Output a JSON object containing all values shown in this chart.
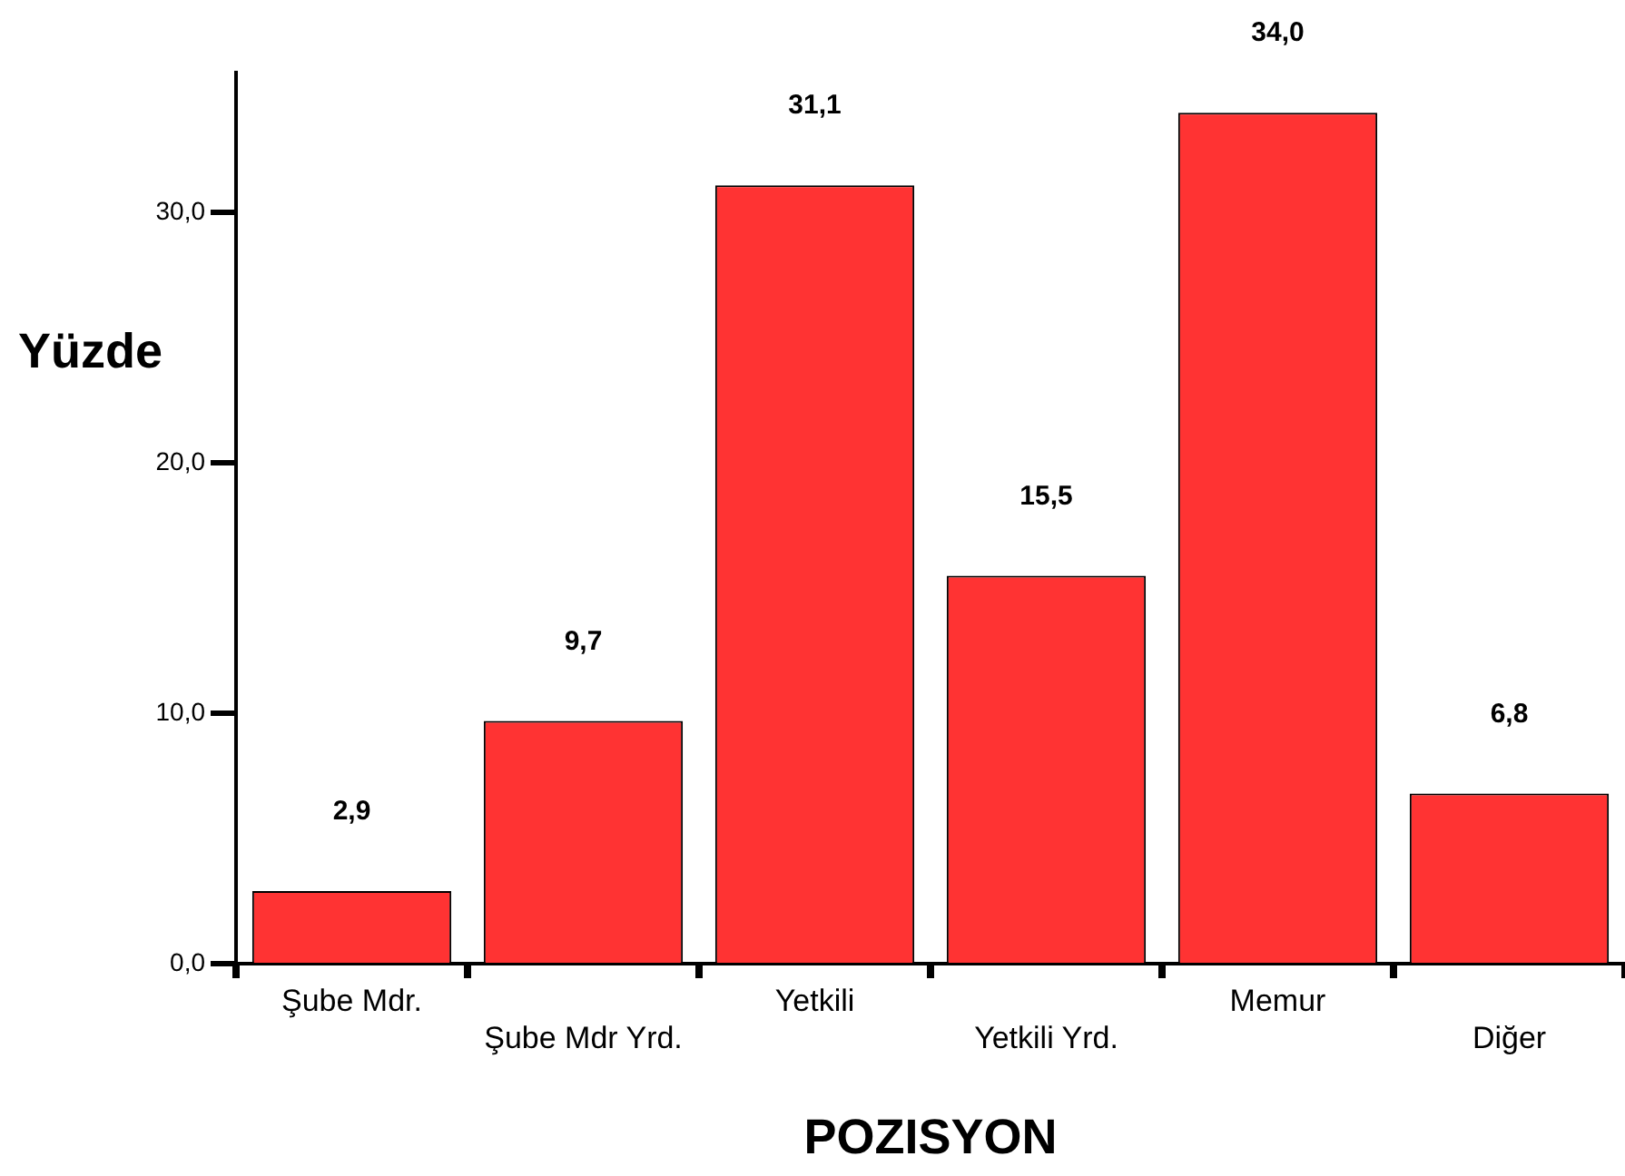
{
  "chart_data": {
    "type": "bar",
    "xlabel": "POZISYON",
    "ylabel": "Yüzde",
    "categories": [
      "Şube Mdr.",
      "Şube Mdr Yrd.",
      "Yetkili",
      "Yetkili Yrd.",
      "Memur",
      "Diğer"
    ],
    "values": [
      2.9,
      9.7,
      31.1,
      15.5,
      34.0,
      6.8
    ],
    "color": "#ff3333",
    "value_labels": [
      "2,9",
      "9,7",
      "31,1",
      "15,5",
      "34,0",
      "6,8"
    ],
    "ylim": [
      0,
      35.6
    ],
    "yticks": [
      {
        "value": 0,
        "label": "0,0"
      },
      {
        "value": 10,
        "label": "10,0"
      },
      {
        "value": 20,
        "label": "20,0"
      },
      {
        "value": 30,
        "label": "30,0"
      }
    ],
    "grid": false,
    "legend": false
  }
}
